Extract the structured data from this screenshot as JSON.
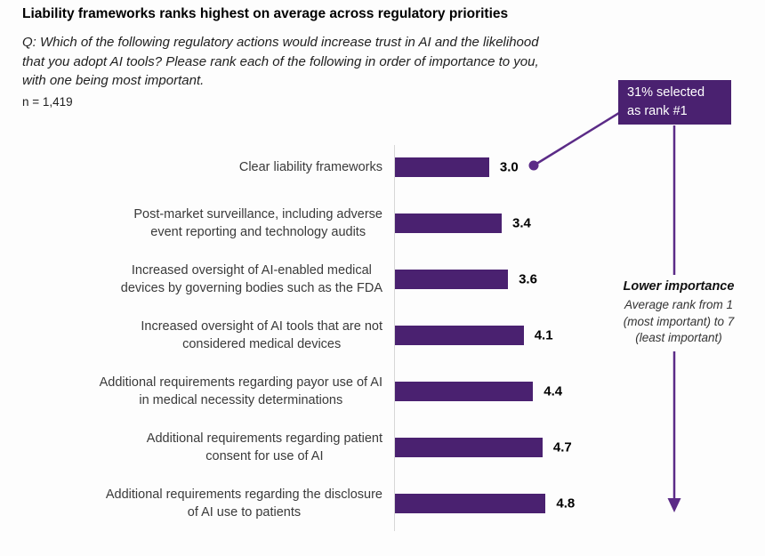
{
  "title": "Liability frameworks ranks highest on average across regulatory priorities",
  "question": "Q: Which of the following regulatory actions would increase trust in AI and the likelihood\nthat you adopt AI tools? Please rank each of the following in order of importance to you,\nwith one being most important.",
  "sample_size": "n = 1,419",
  "callout": {
    "line1": "31% selected",
    "line2": "as rank #1"
  },
  "axis_note": {
    "heading": "Lower importance",
    "line1": "Average rank from 1",
    "line2": "(most important) to 7",
    "line3": "(least important)"
  },
  "colors": {
    "bar": "#4A2170",
    "callout_bg": "#4A2170",
    "arrow": "#5B2B87",
    "axis": "#D7D7D7"
  },
  "chart_data": {
    "type": "bar",
    "orientation": "horizontal",
    "title": "Liability frameworks ranks highest on average across regulatory priorities",
    "categories": [
      "Clear liability frameworks",
      "Post-market surveillance, including adverse\nevent reporting and technology audits",
      "Increased oversight of AI-enabled medical\ndevices by governing bodies such as the FDA",
      "Increased oversight of AI tools that are not\nconsidered medical devices",
      "Additional requirements regarding payor use of AI\nin medical necessity determinations",
      "Additional requirements regarding patient\nconsent for use of AI",
      "Additional requirements regarding the disclosure\nof AI use to patients"
    ],
    "values": [
      3.0,
      3.4,
      3.6,
      4.1,
      4.4,
      4.7,
      4.8
    ],
    "value_labels": [
      "3.0",
      "3.4",
      "3.6",
      "4.1",
      "4.4",
      "4.7",
      "4.8"
    ],
    "xlabel": "Average rank from 1 (most important) to 7 (least important)",
    "xlim": [
      0,
      7
    ],
    "legend": "none",
    "grid": "off",
    "annotation": "31% selected as rank #1"
  }
}
